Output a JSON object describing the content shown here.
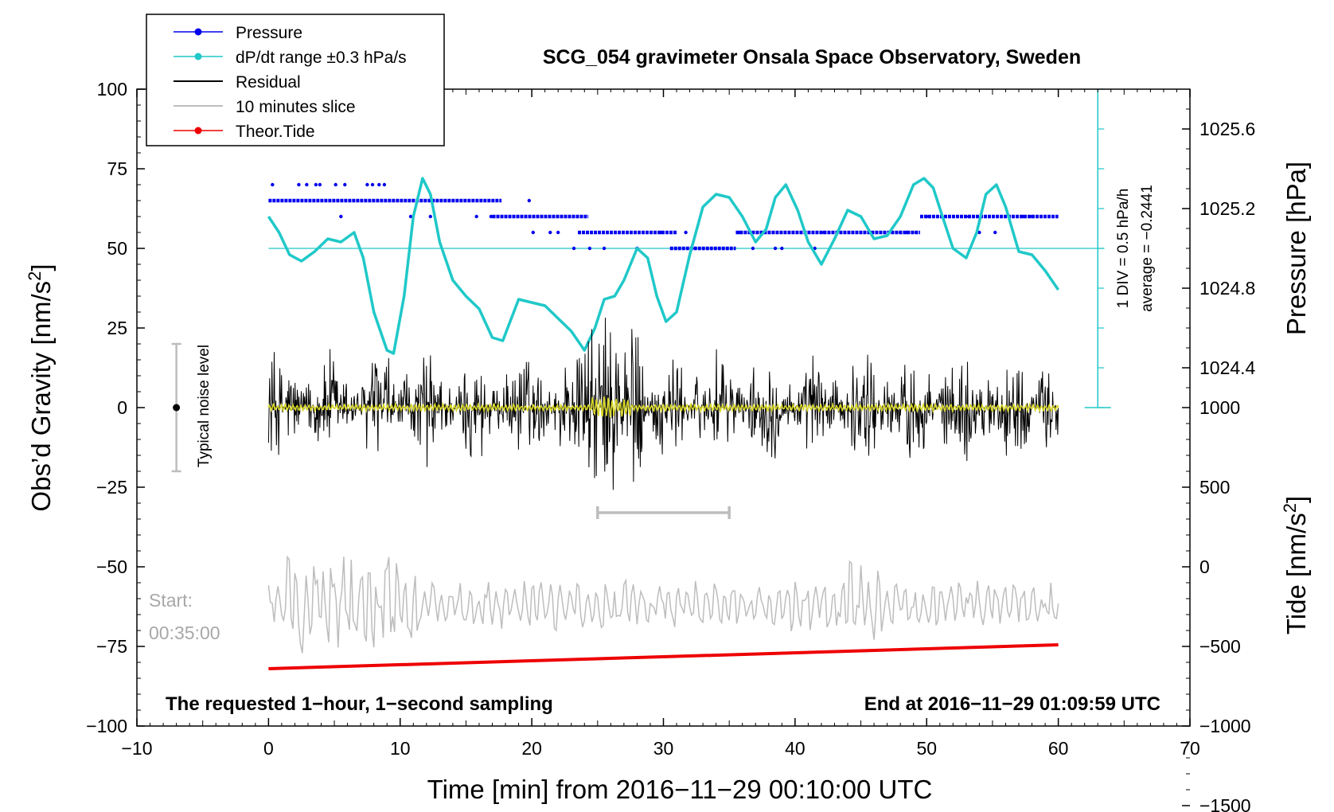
{
  "chart_data": {
    "type": "line",
    "title": "SCG_054 gravimeter Onsala Space Observatory, Sweden",
    "xlabel": "Time [min] from 2016−11−29 00:10:00 UTC",
    "ylabel_left": "Obs’d Gravity [nm/s",
    "ylabel_left_sup": "2",
    "ylabel_left_end": "]",
    "ylabel_right_pressure": "Pressure [hPa]",
    "ylabel_right_tide": "Tide [nm/s",
    "ylabel_right_tide_sup": "2",
    "ylabel_right_tide_end": "]",
    "xlim": [
      -10,
      70
    ],
    "ylim": [
      -100,
      100
    ],
    "x_ticks": [
      -10,
      0,
      10,
      20,
      30,
      40,
      50,
      60,
      70
    ],
    "x_tick_labels": [
      "−10",
      "0",
      "10",
      "20",
      "30",
      "40",
      "50",
      "60",
      "70"
    ],
    "y_ticks": [
      -100,
      -75,
      -50,
      -25,
      0,
      25,
      50,
      75,
      100
    ],
    "y_tick_labels": [
      "−100",
      "−75",
      "−50",
      "−25",
      "0",
      "25",
      "50",
      "75",
      "100"
    ],
    "pressure_ticks": [
      1024.4,
      1024.8,
      1025.2,
      1025.6
    ],
    "pressure_tick_labels": [
      "1024.4",
      "1024.8",
      "1025.2",
      "1025.6"
    ],
    "pressure_axis": {
      "value_at_left50": 1025.0,
      "hPa_per_25_units": 0.4
    },
    "tide_ticks": [
      -1500,
      -1000,
      -500,
      0,
      500,
      1000
    ],
    "tide_tick_labels": [
      "−1500",
      "−1000",
      "−500",
      "0",
      "500",
      "1000"
    ],
    "tide_axis": {
      "zero_at_left": -50,
      "units_per_left_unit": 20
    },
    "legend": [
      {
        "label": "Pressure",
        "color": "#0000ee",
        "marker": true
      },
      {
        "label": "dP/dt range ±0.3 hPa/s",
        "color": "#20c8c8",
        "marker": true
      },
      {
        "label": "Residual",
        "color": "#000000",
        "marker": false
      },
      {
        "label": "10 minutes slice",
        "color": "#bdbdbd",
        "marker": false
      },
      {
        "label": "Theor.Tide",
        "color": "#ee0000",
        "marker": true
      }
    ],
    "dpdt_scale_text": "1 DIV = 0.5 hPa/h",
    "dpdt_average_text": "average = −0.2441",
    "dpdt_baseline": 50,
    "noise_label": "Typical noise level",
    "noise_range": [
      -20,
      20
    ],
    "noise_x": -7,
    "slice_bar": [
      25,
      35
    ],
    "slice_bar_y": -33,
    "start_label": "Start:",
    "start_time": "00:35:00",
    "footer_left": "The requested 1−hour, 1−second sampling",
    "footer_right": "End at 2016−11−29 01:09:59 UTC",
    "series": [
      {
        "name": "dP/dt range ±0.3 hPa/s",
        "color": "#20c8c8",
        "x": [
          0,
          0.8,
          1.6,
          2.5,
          3.5,
          4.5,
          5.5,
          6.5,
          7.2,
          8.0,
          9.0,
          9.5,
          10.3,
          11.0,
          11.7,
          12.3,
          13.0,
          14.0,
          15.0,
          16.0,
          17.0,
          17.8,
          19.0,
          20.0,
          21.0,
          22.0,
          23.0,
          24.0,
          24.8,
          25.5,
          26.3,
          27.0,
          28.0,
          28.8,
          29.5,
          30.2,
          31.0,
          32.0,
          33.0,
          34.0,
          35.0,
          36.0,
          37.0,
          37.8,
          38.5,
          39.3,
          40.2,
          41.0,
          42.0,
          43.0,
          44.0,
          45.0,
          46.0,
          47.0,
          48.0,
          49.0,
          49.8,
          50.5,
          51.2,
          52.0,
          53.0,
          53.8,
          54.5,
          55.3,
          56.0,
          57.0,
          58.0,
          59.0,
          60.0
        ],
        "values": [
          60,
          55,
          48,
          46,
          49,
          53,
          52,
          55,
          47,
          30,
          18,
          17,
          35,
          60,
          72,
          67,
          52,
          40,
          35,
          31,
          22,
          21,
          34,
          33,
          32,
          28,
          24,
          18,
          25,
          34,
          35,
          40,
          50,
          47,
          35,
          27,
          30,
          48,
          63,
          67,
          66,
          60,
          52,
          56,
          66,
          70,
          62,
          52,
          45,
          53,
          62,
          60,
          53,
          54,
          60,
          70,
          72,
          69,
          60,
          50,
          47,
          55,
          67,
          70,
          63,
          49,
          48,
          43,
          37
        ]
      },
      {
        "name": "Pressure",
        "color": "#0000ee",
        "segments": [
          {
            "x_start": 0,
            "x_end": 17.7,
            "value": 65
          },
          {
            "x_start": 17.0,
            "x_end": 24.3,
            "value": 60
          },
          {
            "x_start": 23.5,
            "x_end": 31.0,
            "value": 55
          },
          {
            "x_start": 30.5,
            "x_end": 35.5,
            "value": 50
          },
          {
            "x_start": 35.5,
            "x_end": 49.5,
            "value": 55
          },
          {
            "x_start": 49.5,
            "x_end": 60,
            "value": 60
          }
        ],
        "scatter_x": [
          0.3,
          2.3,
          2.9,
          3.6,
          3.9,
          5.1,
          5.8,
          7.5,
          7.9,
          8.4,
          8.8,
          5.5,
          10.8,
          12.3,
          15.8,
          16.9,
          19.8,
          20.1,
          21.4,
          22.0,
          23.2,
          24.4,
          25.5,
          28.0,
          29.8,
          31.7,
          32.4,
          35.8,
          36.8,
          38.5,
          39.0,
          41.5,
          42.2,
          48.0,
          48.5,
          49.2,
          50.0,
          53.2,
          54.0,
          55.2,
          57.3,
          58.0
        ],
        "scatter_values": [
          70,
          70,
          70,
          70,
          70,
          70,
          70,
          70,
          70,
          70,
          70,
          60,
          60,
          60,
          60,
          60,
          65,
          55,
          55,
          55,
          50,
          50,
          50,
          50,
          55,
          55,
          50,
          55,
          50,
          50,
          50,
          50,
          55,
          55,
          55,
          55,
          60,
          60,
          55,
          55,
          60,
          60
        ]
      },
      {
        "name": "Theor.Tide",
        "color": "#ee0000",
        "x": [
          0,
          60
        ],
        "values": [
          -82,
          -74.5
        ]
      }
    ]
  }
}
